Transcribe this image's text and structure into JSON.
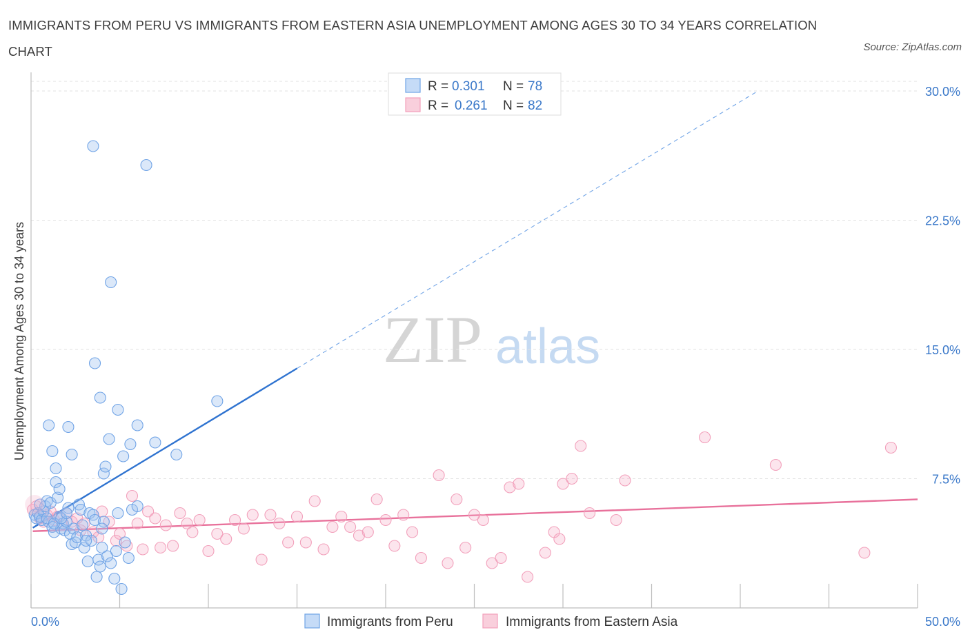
{
  "title": "IMMIGRANTS FROM PERU VS IMMIGRANTS FROM EASTERN ASIA UNEMPLOYMENT AMONG AGES 30 TO 34 YEARS CORRELATION CHART",
  "source": "Source: ZipAtlas.com",
  "watermark": {
    "zip": "ZIP",
    "atlas": "atlas"
  },
  "legend": {
    "r_label": "R =",
    "n_label": "N =",
    "rows": [
      {
        "r": "0.301",
        "n": "78"
      },
      {
        "r": "0.261",
        "n": "82"
      }
    ]
  },
  "chart_data": {
    "type": "scatter",
    "title": "IMMIGRANTS FROM PERU VS IMMIGRANTS FROM EASTERN ASIA UNEMPLOYMENT AMONG AGES 30 TO 34 YEARS CORRELATION CHART",
    "xlabel": "",
    "ylabel": "Unemployment Among Ages 30 to 34 years",
    "xlim": [
      0,
      50
    ],
    "ylim": [
      0,
      30
    ],
    "x_tick_labels": [
      "0.0%",
      "50.0%"
    ],
    "y_ticks": [
      7.5,
      15.0,
      22.5,
      30.0
    ],
    "y_tick_labels": [
      "7.5%",
      "15.0%",
      "22.5%",
      "30.0%"
    ],
    "grid": true,
    "legend_position": "top-center",
    "series": [
      {
        "name": "Immigrants from Peru",
        "color": "#6fa3e6",
        "line_color": "#2f73d0",
        "R": 0.301,
        "N": 78,
        "trend": {
          "x0": 0.1,
          "y0": 4.65,
          "x1": 15.0,
          "y1": 13.9,
          "dashed_to_x": 41.0,
          "dashed_to_y": 30.0
        },
        "points": [
          [
            0.2,
            5.4
          ],
          [
            0.3,
            5.2
          ],
          [
            0.4,
            5.5
          ],
          [
            0.5,
            5.3
          ],
          [
            0.6,
            5.1
          ],
          [
            0.7,
            5.6
          ],
          [
            0.8,
            5.9
          ],
          [
            0.9,
            6.2
          ],
          [
            1.0,
            5.0
          ],
          [
            1.1,
            6.1
          ],
          [
            1.2,
            4.7
          ],
          [
            1.3,
            4.4
          ],
          [
            1.4,
            7.3
          ],
          [
            1.5,
            6.4
          ],
          [
            1.6,
            5.3
          ],
          [
            1.7,
            4.6
          ],
          [
            1.8,
            4.9
          ],
          [
            1.9,
            4.5
          ],
          [
            2.0,
            5.0
          ],
          [
            2.1,
            5.8
          ],
          [
            2.2,
            4.3
          ],
          [
            2.3,
            3.7
          ],
          [
            2.4,
            4.6
          ],
          [
            2.5,
            3.8
          ],
          [
            2.6,
            4.1
          ],
          [
            2.7,
            6.0
          ],
          [
            2.8,
            5.7
          ],
          [
            3.0,
            3.5
          ],
          [
            3.1,
            4.2
          ],
          [
            3.2,
            2.7
          ],
          [
            3.3,
            5.5
          ],
          [
            3.4,
            3.9
          ],
          [
            3.5,
            5.4
          ],
          [
            3.6,
            5.1
          ],
          [
            3.7,
            1.8
          ],
          [
            3.8,
            2.8
          ],
          [
            3.9,
            2.4
          ],
          [
            4.0,
            3.5
          ],
          [
            4.1,
            5.0
          ],
          [
            4.3,
            3.0
          ],
          [
            4.5,
            2.6
          ],
          [
            4.7,
            1.7
          ],
          [
            4.8,
            3.3
          ],
          [
            4.9,
            5.5
          ],
          [
            5.1,
            1.1
          ],
          [
            5.3,
            3.8
          ],
          [
            5.5,
            2.9
          ],
          [
            5.7,
            5.7
          ],
          [
            6.0,
            5.9
          ],
          [
            1.0,
            10.6
          ],
          [
            1.2,
            9.1
          ],
          [
            1.4,
            8.1
          ],
          [
            1.6,
            6.9
          ],
          [
            2.1,
            10.5
          ],
          [
            2.3,
            8.9
          ],
          [
            3.5,
            26.8
          ],
          [
            3.6,
            14.2
          ],
          [
            3.9,
            12.2
          ],
          [
            4.1,
            7.8
          ],
          [
            4.2,
            8.2
          ],
          [
            4.4,
            9.8
          ],
          [
            4.5,
            18.9
          ],
          [
            4.9,
            11.5
          ],
          [
            5.2,
            8.8
          ],
          [
            5.6,
            9.5
          ],
          [
            6.0,
            10.6
          ],
          [
            6.5,
            25.7
          ],
          [
            7.0,
            9.6
          ],
          [
            8.2,
            8.9
          ],
          [
            10.5,
            12.0
          ],
          [
            2.9,
            4.8
          ],
          [
            0.5,
            6.0
          ],
          [
            0.9,
            5.2
          ],
          [
            1.3,
            4.9
          ],
          [
            1.7,
            5.2
          ],
          [
            2.0,
            5.5
          ],
          [
            3.1,
            3.9
          ],
          [
            4.0,
            4.6
          ]
        ]
      },
      {
        "name": "Immigrants from Eastern Asia",
        "color": "#f2a0bb",
        "line_color": "#e8719b",
        "R": 0.261,
        "N": 82,
        "trend": {
          "x0": 0.1,
          "y0": 4.45,
          "x1": 50.0,
          "y1": 6.3
        },
        "points": [
          [
            0.1,
            5.7
          ],
          [
            0.3,
            5.9
          ],
          [
            0.5,
            5.2
          ],
          [
            0.7,
            5.0
          ],
          [
            0.9,
            5.4
          ],
          [
            1.1,
            5.6
          ],
          [
            1.3,
            5.1
          ],
          [
            1.5,
            5.3
          ],
          [
            1.8,
            4.8
          ],
          [
            2.0,
            5.5
          ],
          [
            2.3,
            5.0
          ],
          [
            2.6,
            5.2
          ],
          [
            2.8,
            4.5
          ],
          [
            3.0,
            4.9
          ],
          [
            3.5,
            4.4
          ],
          [
            3.8,
            4.1
          ],
          [
            4.0,
            5.6
          ],
          [
            4.4,
            5.0
          ],
          [
            4.8,
            3.9
          ],
          [
            5.0,
            4.3
          ],
          [
            5.4,
            3.6
          ],
          [
            5.7,
            6.5
          ],
          [
            6.0,
            4.9
          ],
          [
            6.3,
            3.4
          ],
          [
            6.6,
            5.6
          ],
          [
            7.0,
            5.2
          ],
          [
            7.3,
            3.5
          ],
          [
            7.6,
            4.8
          ],
          [
            8.0,
            3.6
          ],
          [
            8.4,
            5.5
          ],
          [
            8.8,
            4.9
          ],
          [
            9.1,
            4.4
          ],
          [
            9.5,
            5.1
          ],
          [
            10.0,
            3.3
          ],
          [
            10.5,
            4.3
          ],
          [
            11.0,
            4.0
          ],
          [
            11.5,
            5.1
          ],
          [
            12.0,
            4.6
          ],
          [
            12.5,
            5.4
          ],
          [
            13.0,
            2.8
          ],
          [
            13.5,
            5.4
          ],
          [
            14.0,
            4.9
          ],
          [
            14.5,
            3.8
          ],
          [
            15.0,
            5.3
          ],
          [
            15.5,
            3.8
          ],
          [
            16.0,
            6.2
          ],
          [
            16.5,
            3.4
          ],
          [
            17.0,
            4.7
          ],
          [
            17.5,
            5.3
          ],
          [
            18.0,
            4.7
          ],
          [
            18.5,
            4.2
          ],
          [
            19.0,
            4.4
          ],
          [
            19.5,
            6.3
          ],
          [
            20.0,
            5.1
          ],
          [
            20.5,
            3.6
          ],
          [
            21.0,
            5.4
          ],
          [
            21.5,
            4.4
          ],
          [
            22.0,
            2.9
          ],
          [
            23.0,
            7.7
          ],
          [
            23.5,
            2.6
          ],
          [
            24.0,
            6.3
          ],
          [
            24.5,
            3.5
          ],
          [
            25.0,
            5.4
          ],
          [
            25.5,
            5.1
          ],
          [
            26.0,
            2.6
          ],
          [
            26.5,
            2.9
          ],
          [
            27.0,
            7.0
          ],
          [
            27.5,
            7.2
          ],
          [
            28.0,
            1.8
          ],
          [
            29.0,
            3.2
          ],
          [
            29.5,
            4.4
          ],
          [
            29.8,
            4.0
          ],
          [
            30.0,
            7.2
          ],
          [
            30.5,
            7.5
          ],
          [
            31.0,
            9.4
          ],
          [
            31.5,
            5.5
          ],
          [
            33.0,
            5.1
          ],
          [
            33.5,
            7.4
          ],
          [
            38.0,
            9.9
          ],
          [
            42.0,
            8.3
          ],
          [
            47.0,
            3.2
          ],
          [
            48.5,
            9.3
          ]
        ]
      }
    ]
  },
  "bottom_legend": [
    "Immigrants from Peru",
    "Immigrants from Eastern Asia"
  ]
}
